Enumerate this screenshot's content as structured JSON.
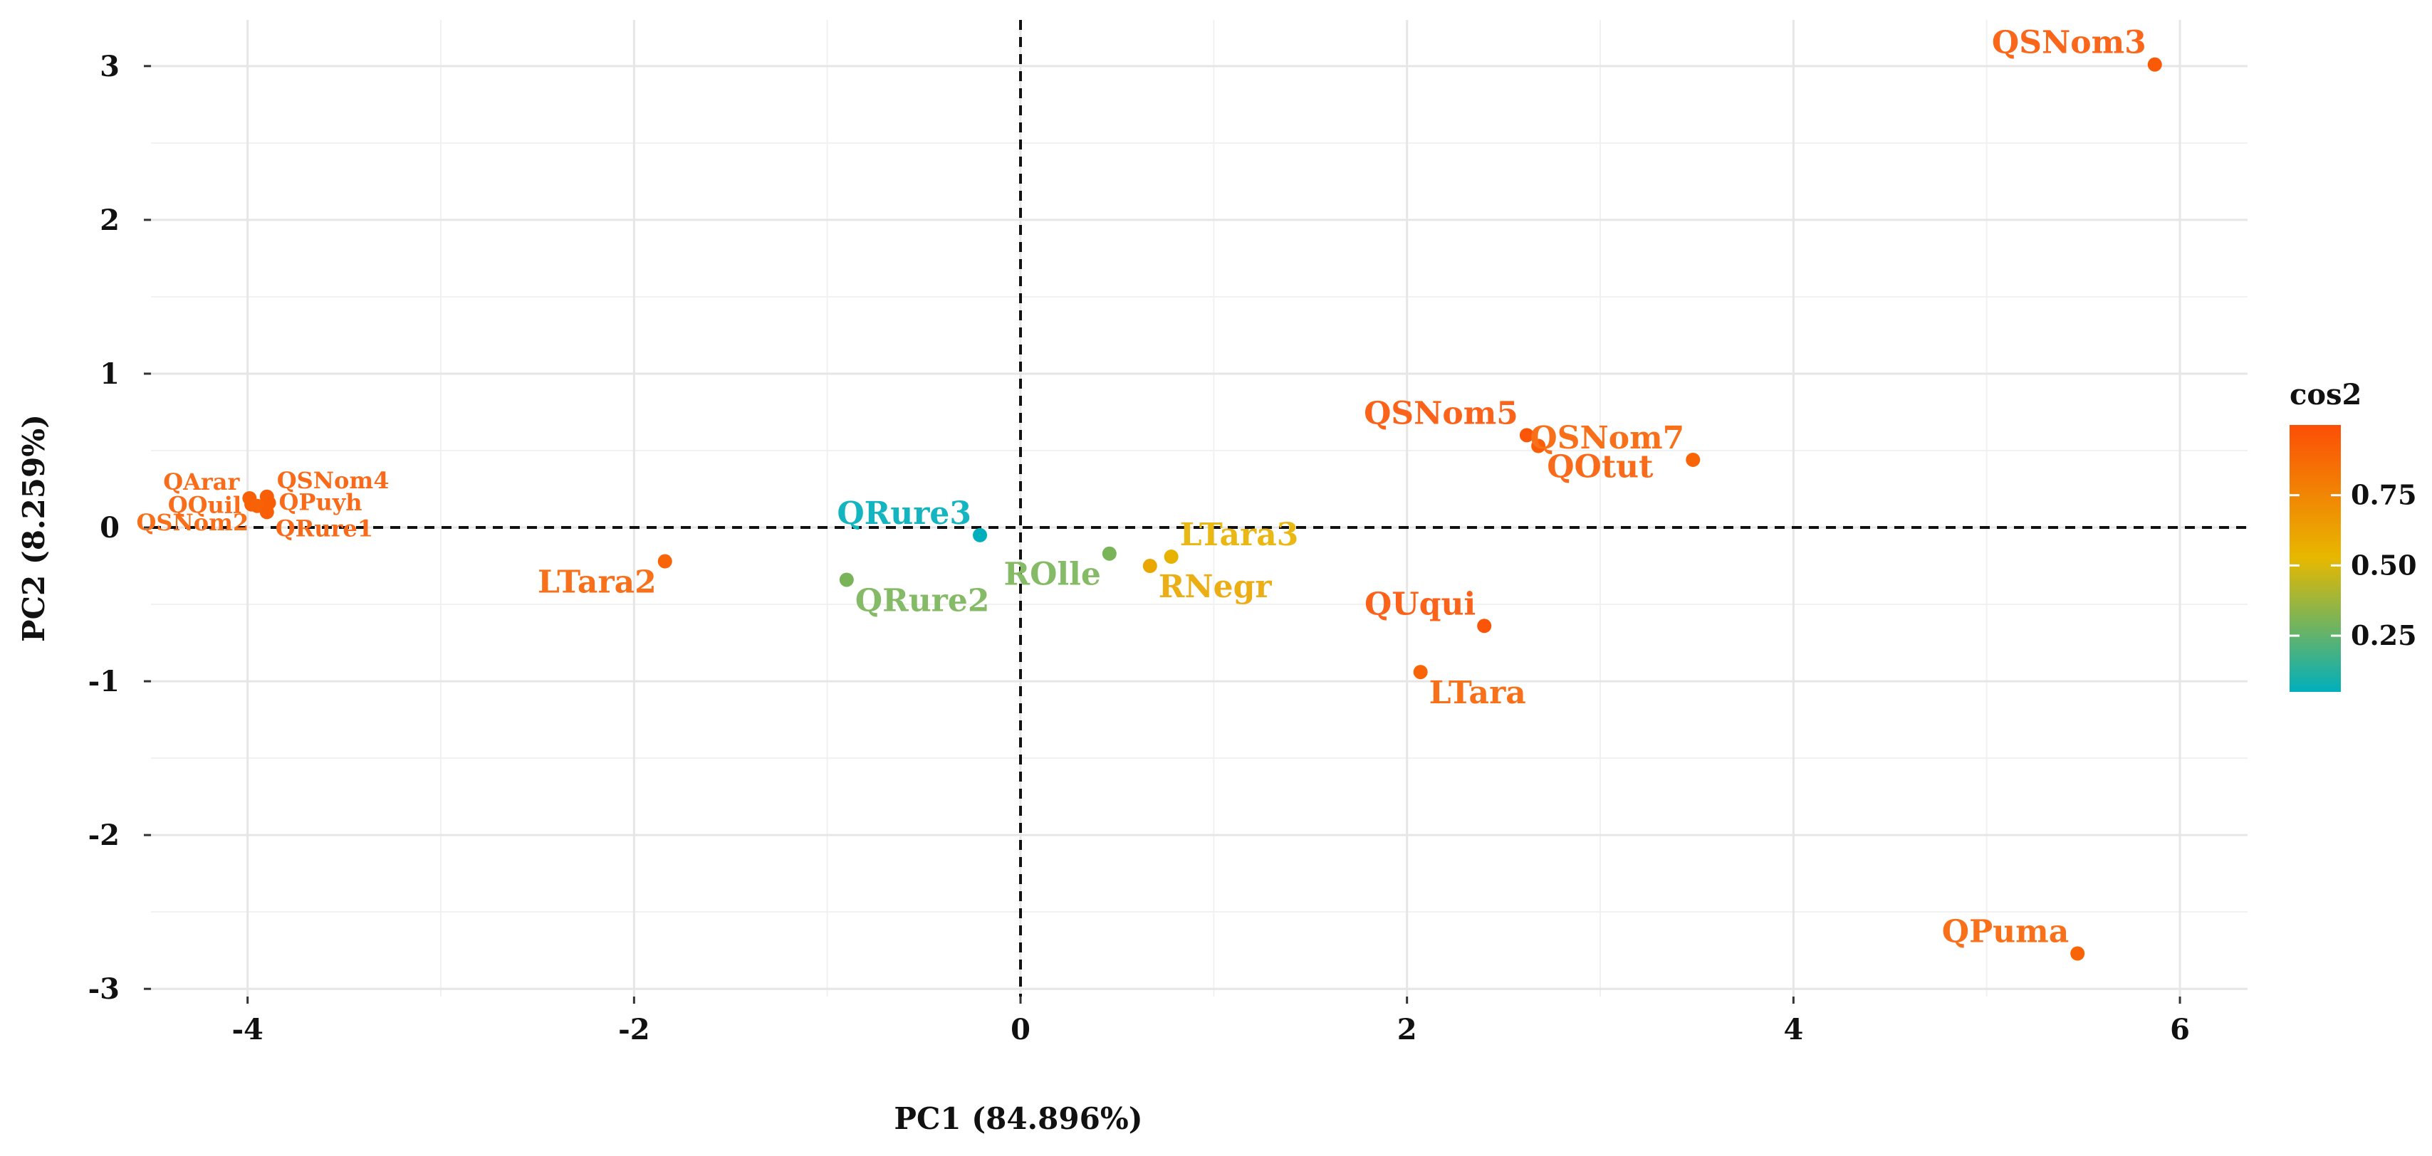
{
  "chart_data": {
    "type": "scatter",
    "title": "",
    "xlabel": "PC1 (84.896%)",
    "ylabel": "PC2 (8.259%)",
    "xlim": [
      -4.5,
      6.35
    ],
    "ylim": [
      -3.05,
      3.3
    ],
    "xticks": [
      -4,
      -2,
      0,
      2,
      4,
      6
    ],
    "xtick_labels": [
      "-4",
      "-2",
      "0",
      "2",
      "4",
      "6"
    ],
    "yticks": [
      -3,
      -2,
      -1,
      0,
      1,
      2,
      3
    ],
    "ytick_labels": [
      "-3",
      "-2",
      "-1",
      "0",
      "1",
      "2",
      "3"
    ],
    "grid": true,
    "reference_lines": {
      "x": 0,
      "y": 0,
      "style": "dashed"
    },
    "color_variable": "cos2",
    "legend": {
      "title": "cos2",
      "placement": "right",
      "ticks": [
        0.25,
        0.5,
        0.75
      ],
      "tick_labels": [
        "0.25",
        "0.50",
        "0.75"
      ],
      "range": [
        0.05,
        1.0
      ],
      "colors": [
        "#00AFBB",
        "#E7B800",
        "#FC4E07"
      ]
    },
    "points": [
      {
        "label": "QSNom3",
        "x": 5.87,
        "y": 3.01,
        "cos2": 0.95,
        "label_pos": "upper-left",
        "label_size": "large"
      },
      {
        "label": "QSNom5",
        "x": 2.62,
        "y": 0.6,
        "cos2": 0.97,
        "label_pos": "upper-left",
        "label_size": "large"
      },
      {
        "label": "QOtut",
        "x": 2.68,
        "y": 0.53,
        "cos2": 0.93,
        "label_pos": "lower-right",
        "label_size": "large"
      },
      {
        "label": "QSNom7",
        "x": 3.48,
        "y": 0.44,
        "cos2": 0.9,
        "label_pos": "upper-left",
        "label_size": "large"
      },
      {
        "label": "QUqui",
        "x": 2.4,
        "y": -0.64,
        "cos2": 0.97,
        "label_pos": "upper-left",
        "label_size": "large"
      },
      {
        "label": "LTara",
        "x": 2.07,
        "y": -0.94,
        "cos2": 0.9,
        "label_pos": "lower-right",
        "label_size": "large"
      },
      {
        "label": "QPuma",
        "x": 5.47,
        "y": -2.77,
        "cos2": 0.9,
        "label_pos": "upper-left",
        "label_size": "large"
      },
      {
        "label": "LTara3",
        "x": 0.78,
        "y": -0.19,
        "cos2": 0.55,
        "label_pos": "upper-right",
        "label_size": "large"
      },
      {
        "label": "RNegr",
        "x": 0.67,
        "y": -0.25,
        "cos2": 0.6,
        "label_pos": "lower-right",
        "label_size": "large"
      },
      {
        "label": "ROlle",
        "x": 0.46,
        "y": -0.17,
        "cos2": 0.3,
        "label_pos": "lower-left",
        "label_size": "large"
      },
      {
        "label": "QRure3",
        "x": -0.21,
        "y": -0.05,
        "cos2": 0.05,
        "label_pos": "upper-left",
        "label_size": "large"
      },
      {
        "label": "QRure2",
        "x": -0.9,
        "y": -0.34,
        "cos2": 0.3,
        "label_pos": "lower-right",
        "label_size": "large"
      },
      {
        "label": "LTara2",
        "x": -1.84,
        "y": -0.22,
        "cos2": 0.9,
        "label_pos": "lower-left",
        "label_size": "large"
      },
      {
        "label": "QArar",
        "x": -3.99,
        "y": 0.19,
        "cos2": 0.92,
        "label_pos": "upper-left",
        "label_size": "small"
      },
      {
        "label": "QSNom4",
        "x": -3.9,
        "y": 0.2,
        "cos2": 0.93,
        "label_pos": "upper-right",
        "label_size": "small"
      },
      {
        "label": "QQuil",
        "x": -3.98,
        "y": 0.15,
        "cos2": 0.92,
        "label_pos": "left",
        "label_size": "small"
      },
      {
        "label": "QPuyh",
        "x": -3.89,
        "y": 0.16,
        "cos2": 0.93,
        "label_pos": "right",
        "label_size": "small"
      },
      {
        "label": "QSNom2",
        "x": -3.95,
        "y": 0.14,
        "cos2": 0.91,
        "label_pos": "lower-left",
        "label_size": "small"
      },
      {
        "label": "QRure1",
        "x": -3.9,
        "y": 0.1,
        "cos2": 0.93,
        "label_pos": "lower-right",
        "label_size": "small"
      }
    ]
  }
}
